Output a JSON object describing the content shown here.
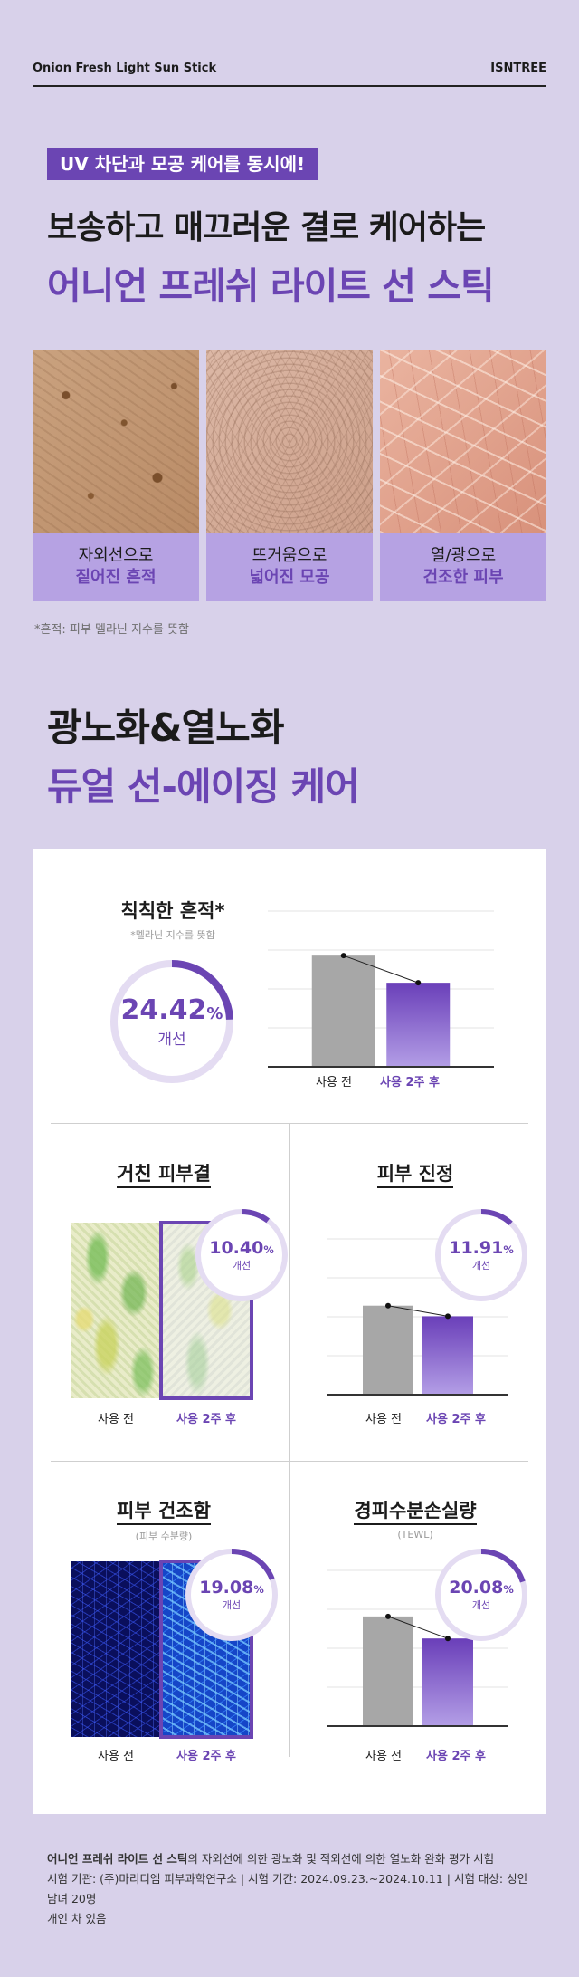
{
  "header": {
    "product_name": "Onion Fresh Light Sun Stick",
    "brand": "ISNTREE"
  },
  "hero": {
    "badge": "UV 차단과 모공 케어를 동시에!",
    "line1": "보송하고 매끄러운 결로 케어하는",
    "line2": "어니언 프레쉬 라이트 선 스틱"
  },
  "skin_cards": [
    {
      "line1": "자외선으로",
      "line2": "짙어진 흔적"
    },
    {
      "line1": "뜨거움으로",
      "line2": "넓어진 모공"
    },
    {
      "line1": "열/광으로",
      "line2": "건조한 피부"
    }
  ],
  "skin_footnote": "*흔적: 피부 멜라닌 지수를 뜻함",
  "section2": {
    "line1": "광노화&열노화",
    "line2": "듀얼 선-에이징 케어"
  },
  "results": {
    "before_label": "사용 전",
    "after_label": "사용 2주 후",
    "improve_label": "개선",
    "pigment": {
      "title": "칙칙한 흔적*",
      "note": "*멜라닌 지수를 뜻함",
      "pct": "24.42",
      "unit": "%"
    },
    "texture": {
      "title": "거친 피부결",
      "pct": "10.40",
      "unit": "%"
    },
    "soothing": {
      "title": "피부 진정",
      "pct": "11.91",
      "unit": "%"
    },
    "dryness": {
      "title": "피부 건조함",
      "note": "(피부 수분량)",
      "pct": "19.08",
      "unit": "%"
    },
    "tewl": {
      "title": "경피수분손실량",
      "note": "(TEWL)",
      "pct": "20.08",
      "unit": "%"
    }
  },
  "chart_data": [
    {
      "type": "bar",
      "title": "칙칙한 흔적*",
      "categories": [
        "사용 전",
        "사용 2주 후"
      ],
      "values": [
        100,
        75.58
      ],
      "ylim": [
        0,
        140
      ]
    },
    {
      "type": "bar",
      "title": "피부 진정",
      "categories": [
        "사용 전",
        "사용 2주 후"
      ],
      "values": [
        100,
        88.09
      ],
      "ylim": [
        0,
        175
      ]
    },
    {
      "type": "bar",
      "title": "경피수분손실량",
      "categories": [
        "사용 전",
        "사용 2주 후"
      ],
      "values": [
        100,
        79.92
      ],
      "ylim": [
        0,
        142
      ]
    }
  ],
  "colors": {
    "accent": "#6b45b3",
    "before_bar": "#a7a7a7",
    "after_bar_top": "#6a3fb9",
    "after_bar_bottom": "#b39ee6",
    "background": "#d8d1ea"
  },
  "footer": {
    "bold_lead": "어니언 프레쉬 라이트 선 스틱",
    "line1_rest": "의 자외선에 의한 광노화 및 적외선에 의한 열노화 완화 평가 시험",
    "line2": "시험 기관: (주)마리디엠 피부과학연구소 | 시험 기간: 2024.09.23.~2024.10.11 | 시험 대상: 성인 남녀 20명",
    "line3": "개인 차 있음"
  }
}
